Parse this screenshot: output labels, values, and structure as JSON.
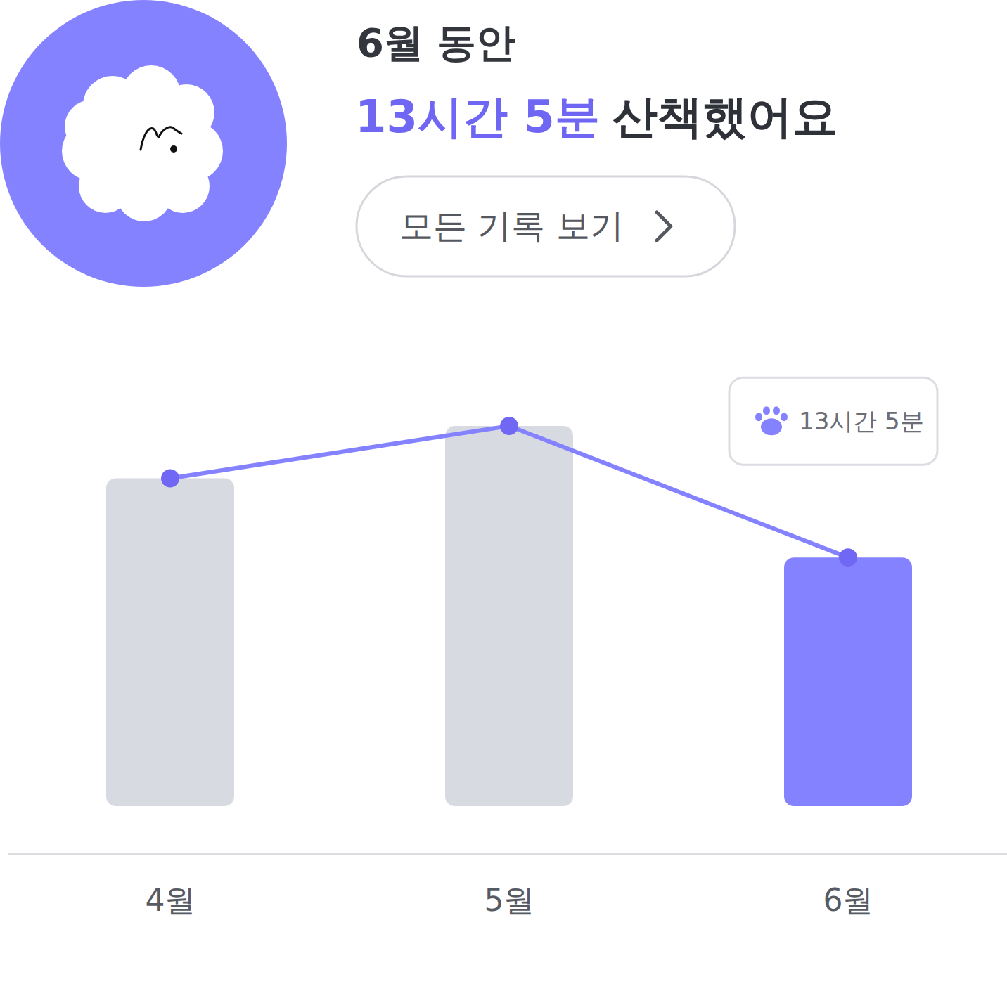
{
  "chart_data": {
    "type": "bar",
    "title": "6월 동안",
    "subtitle": [
      "13시간 5분",
      "산책했어요"
    ],
    "button": "모든 기록 보기",
    "categories": [
      "4월",
      "5월",
      "6월"
    ],
    "series": [
      {
        "type": "bar",
        "values": [
          1035,
          1200,
          785
        ],
        "colors": [
          "#d7dae0",
          "#d7dae0",
          "#8582ff"
        ],
        "value_labels": [
          null,
          null,
          "13시간 5분"
        ]
      },
      {
        "type": "line",
        "values": [
          1035,
          1200,
          785
        ],
        "color": "#8582ff",
        "marker": "circle"
      }
    ],
    "ylim": [
      0,
      1300
    ],
    "tick_labels": "x"
  }
}
